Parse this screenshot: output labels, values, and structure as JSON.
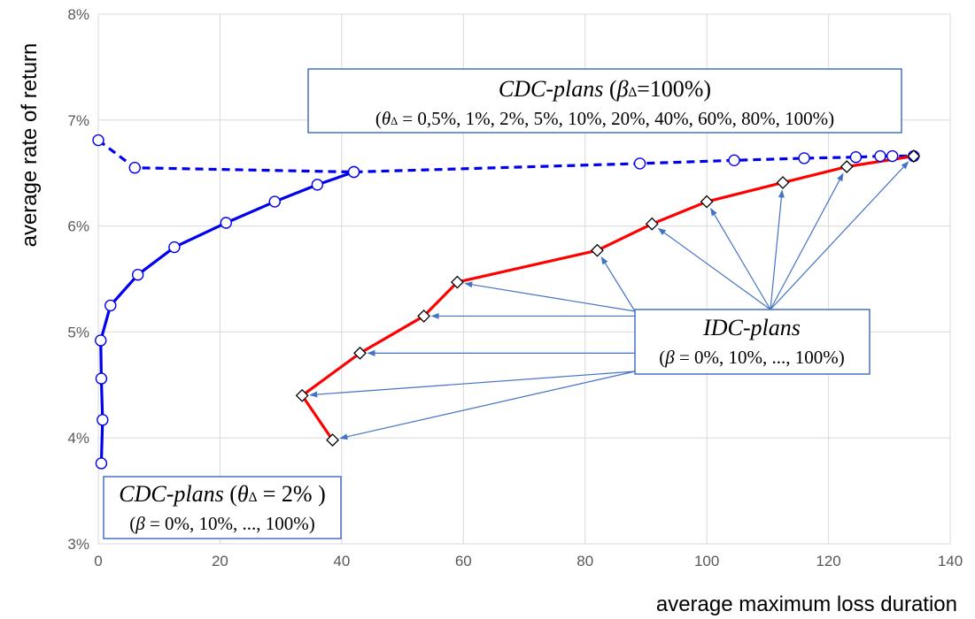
{
  "chart_data": {
    "type": "scatter",
    "xlabel": "average maximum loss duration",
    "ylabel": "average rate of return",
    "xlim": [
      0,
      140
    ],
    "ylim": [
      3,
      8
    ],
    "x_ticks": [
      "0",
      "20",
      "40",
      "60",
      "80",
      "100",
      "120",
      "140"
    ],
    "y_ticks": [
      "3%",
      "4%",
      "5%",
      "6%",
      "7%",
      "8%"
    ],
    "grid": true,
    "series": [
      {
        "style": "solid",
        "color": "#0000ee",
        "marker": "circle",
        "points": [
          [
            0.5,
            3.76
          ],
          [
            0.7,
            4.17
          ],
          [
            0.5,
            4.56
          ],
          [
            0.4,
            4.92
          ],
          [
            2,
            5.25
          ],
          [
            6.5,
            5.54
          ],
          [
            12.5,
            5.8
          ],
          [
            21,
            6.03
          ],
          [
            29,
            6.23
          ],
          [
            36,
            6.39
          ],
          [
            42,
            6.51
          ]
        ]
      },
      {
        "style": "dashed",
        "color": "#0000ee",
        "marker": "circle",
        "points": [
          [
            0,
            6.81
          ],
          [
            6,
            6.55
          ],
          [
            42,
            6.51
          ],
          [
            89,
            6.59
          ],
          [
            104.5,
            6.62
          ],
          [
            116,
            6.64
          ],
          [
            124.5,
            6.65
          ],
          [
            128.5,
            6.66
          ],
          [
            130.5,
            6.66
          ],
          [
            134,
            6.66
          ]
        ]
      },
      {
        "style": "solid",
        "color": "#ff0000",
        "marker": "diamond",
        "points": [
          [
            38.5,
            3.98
          ],
          [
            33.5,
            4.4
          ],
          [
            43,
            4.8
          ],
          [
            53.5,
            5.15
          ],
          [
            59,
            5.47
          ],
          [
            82,
            5.77
          ],
          [
            91,
            6.02
          ],
          [
            100,
            6.23
          ],
          [
            112.5,
            6.41
          ],
          [
            123,
            6.56
          ],
          [
            134,
            6.66
          ]
        ]
      }
    ],
    "annotations": [
      {
        "id": "cdc-top",
        "lines": [
          "CDC-plans (β∆=100%)",
          "(θ∆ = 0,5%, 1%, 2%, 5%, 10%, 20%, 40%, 60%, 80%, 100%)"
        ]
      },
      {
        "id": "idc",
        "lines": [
          "IDC-plans",
          "(β = 0%, 10%, ..., 100%)"
        ],
        "arrow_targets": [
          [
            38.5,
            3.98
          ],
          [
            33.5,
            4.4
          ],
          [
            43,
            4.8
          ],
          [
            53.5,
            5.15
          ],
          [
            59,
            5.47
          ],
          [
            82,
            5.77
          ],
          [
            91,
            6.02
          ],
          [
            100,
            6.23
          ],
          [
            112.5,
            6.41
          ],
          [
            123,
            6.56
          ],
          [
            134,
            6.66
          ]
        ]
      },
      {
        "id": "cdc-bottom",
        "lines": [
          "CDC-plans (θ∆ = 2% )",
          "(β = 0%, 10%, ..., 100%)"
        ]
      }
    ]
  }
}
